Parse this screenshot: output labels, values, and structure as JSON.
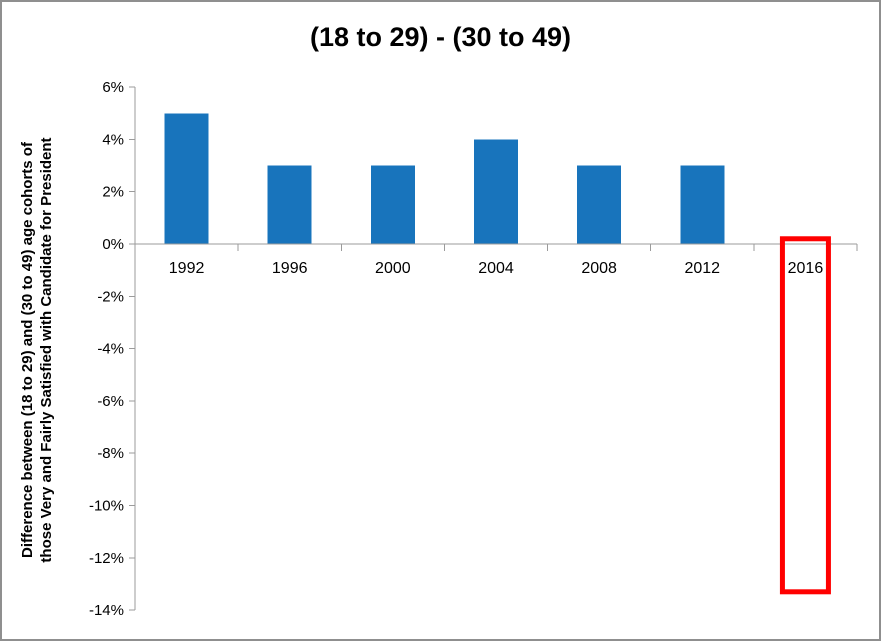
{
  "chart_data": {
    "type": "bar",
    "title": "(18 to 29) - (30 to 49)",
    "ylabel_line1": "Difference between (18 to 29) and (30 to 49) age cohorts of",
    "ylabel_line2": "those Very and Fairly Satisfied with Candidate for President",
    "xlabel": "",
    "categories": [
      "1992",
      "1996",
      "2000",
      "2004",
      "2008",
      "2012",
      "2016"
    ],
    "values": [
      5,
      3,
      3,
      4,
      3,
      3,
      null
    ],
    "ylim": [
      -14,
      6
    ],
    "y_ticks": [
      {
        "value": 6,
        "label": "6%"
      },
      {
        "value": 4,
        "label": "4%"
      },
      {
        "value": 2,
        "label": "2%"
      },
      {
        "value": 0,
        "label": "0%"
      },
      {
        "value": -2,
        "label": "-2%"
      },
      {
        "value": -4,
        "label": "-4%"
      },
      {
        "value": -6,
        "label": "-6%"
      },
      {
        "value": -8,
        "label": "-8%"
      },
      {
        "value": -10,
        "label": "-10%"
      },
      {
        "value": -12,
        "label": "-12%"
      },
      {
        "value": -14,
        "label": "-14%"
      }
    ],
    "grid": "off",
    "legend": "none",
    "colors": {
      "bar": "#1874BC",
      "axis": "#9b9b9b",
      "text": "#000000",
      "annotation": "#FF0000"
    },
    "annotation": {
      "category": "2016",
      "shape": "empty-red-rectangle",
      "top_percent": 0.2,
      "bottom_percent": -13.3
    }
  }
}
